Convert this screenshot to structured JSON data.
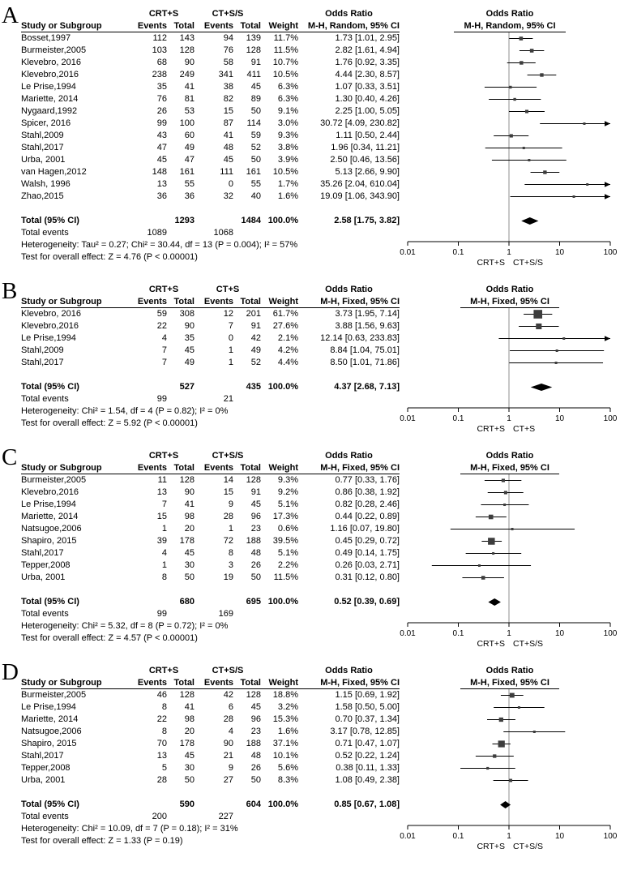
{
  "chart_data": [
    {
      "type": "forest",
      "panel_label": "A",
      "group1_header": "CRT+S",
      "group2_header": "CT+S/S",
      "odds_ratio_header": "Odds Ratio",
      "method_label": "M-H, Random, 95% CI",
      "study_col_header": "Study or Subgroup",
      "events_col_header": "Events",
      "total_col_header": "Total",
      "weight_col_header": "Weight",
      "x_ticks": [
        0.01,
        0.1,
        1,
        10,
        100
      ],
      "xlim": [
        0.01,
        100
      ],
      "favours_left_label": "CRT+S",
      "favours_right_label": "CT+S/S",
      "studies": [
        {
          "name": "Bosset,1997",
          "events1": "112",
          "total1": "143",
          "events2": "94",
          "total2": "139",
          "weight": "11.7%",
          "weight_value": 11.7,
          "or": 1.73,
          "ci_low": 1.01,
          "ci_high": 2.95,
          "ci_text": "1.73 [1.01, 2.95]"
        },
        {
          "name": "Burmeister,2005",
          "events1": "103",
          "total1": "128",
          "events2": "76",
          "total2": "128",
          "weight": "11.5%",
          "weight_value": 11.5,
          "or": 2.82,
          "ci_low": 1.61,
          "ci_high": 4.94,
          "ci_text": "2.82 [1.61, 4.94]"
        },
        {
          "name": "Klevebro, 2016",
          "events1": "68",
          "total1": "90",
          "events2": "58",
          "total2": "91",
          "weight": "10.7%",
          "weight_value": 10.7,
          "or": 1.76,
          "ci_low": 0.92,
          "ci_high": 3.35,
          "ci_text": "1.76 [0.92, 3.35]"
        },
        {
          "name": "Klevebro,2016",
          "events1": "238",
          "total1": "249",
          "events2": "341",
          "total2": "411",
          "weight": "10.5%",
          "weight_value": 10.5,
          "or": 4.44,
          "ci_low": 2.3,
          "ci_high": 8.57,
          "ci_text": "4.44 [2.30, 8.57]"
        },
        {
          "name": "Le Prise,1994",
          "events1": "35",
          "total1": "41",
          "events2": "38",
          "total2": "45",
          "weight": "6.3%",
          "weight_value": 6.3,
          "or": 1.07,
          "ci_low": 0.33,
          "ci_high": 3.51,
          "ci_text": "1.07 [0.33, 3.51]"
        },
        {
          "name": "Mariette, 2014",
          "events1": "76",
          "total1": "81",
          "events2": "82",
          "total2": "89",
          "weight": "6.3%",
          "weight_value": 6.3,
          "or": 1.3,
          "ci_low": 0.4,
          "ci_high": 4.26,
          "ci_text": "1.30 [0.40, 4.26]"
        },
        {
          "name": "Nygaard,1992",
          "events1": "26",
          "total1": "53",
          "events2": "15",
          "total2": "50",
          "weight": "9.1%",
          "weight_value": 9.1,
          "or": 2.25,
          "ci_low": 1.0,
          "ci_high": 5.05,
          "ci_text": "2.25 [1.00, 5.05]"
        },
        {
          "name": "Spicer, 2016",
          "events1": "99",
          "total1": "100",
          "events2": "87",
          "total2": "114",
          "weight": "3.0%",
          "weight_value": 3.0,
          "or": 30.72,
          "ci_low": 4.09,
          "ci_high": 230.82,
          "ci_text": "30.72 [4.09, 230.82]"
        },
        {
          "name": "Stahl,2009",
          "events1": "43",
          "total1": "60",
          "events2": "41",
          "total2": "59",
          "weight": "9.3%",
          "weight_value": 9.3,
          "or": 1.11,
          "ci_low": 0.5,
          "ci_high": 2.44,
          "ci_text": "1.11 [0.50, 2.44]"
        },
        {
          "name": "Stahl,2017",
          "events1": "47",
          "total1": "49",
          "events2": "48",
          "total2": "52",
          "weight": "3.8%",
          "weight_value": 3.8,
          "or": 1.96,
          "ci_low": 0.34,
          "ci_high": 11.21,
          "ci_text": "1.96 [0.34, 11.21]"
        },
        {
          "name": "Urba, 2001",
          "events1": "45",
          "total1": "47",
          "events2": "45",
          "total2": "50",
          "weight": "3.9%",
          "weight_value": 3.9,
          "or": 2.5,
          "ci_low": 0.46,
          "ci_high": 13.56,
          "ci_text": "2.50 [0.46, 13.56]"
        },
        {
          "name": "van Hagen,2012",
          "events1": "148",
          "total1": "161",
          "events2": "111",
          "total2": "161",
          "weight": "10.5%",
          "weight_value": 10.5,
          "or": 5.13,
          "ci_low": 2.66,
          "ci_high": 9.9,
          "ci_text": "5.13 [2.66, 9.90]"
        },
        {
          "name": "Walsh, 1996",
          "events1": "13",
          "total1": "55",
          "events2": "0",
          "total2": "55",
          "weight": "1.7%",
          "weight_value": 1.7,
          "or": 35.26,
          "ci_low": 2.04,
          "ci_high": 610.04,
          "ci_text": "35.26 [2.04, 610.04]"
        },
        {
          "name": "Zhao,2015",
          "events1": "36",
          "total1": "36",
          "events2": "32",
          "total2": "40",
          "weight": "1.6%",
          "weight_value": 1.6,
          "or": 19.09,
          "ci_low": 1.06,
          "ci_high": 343.9,
          "ci_text": "19.09 [1.06, 343.90]"
        }
      ],
      "total_row": {
        "label": "Total (95% CI)",
        "total1": "1293",
        "total2": "1484",
        "weight": "100.0%",
        "or": 2.58,
        "ci_low": 1.75,
        "ci_high": 3.82,
        "ci_text": "2.58 [1.75, 3.82]"
      },
      "total_events": {
        "label": "Total events",
        "events1": "1089",
        "events2": "1068"
      },
      "heterogeneity_text": "Heterogeneity: Tau² = 0.27; Chi² = 30.44, df = 13 (P = 0.004); I² = 57%",
      "overall_effect_text": "Test for overall effect: Z = 4.76 (P < 0.00001)"
    },
    {
      "type": "forest",
      "panel_label": "B",
      "group1_header": "CRT+S",
      "group2_header": "CT+S",
      "odds_ratio_header": "Odds Ratio",
      "method_label": "M-H, Fixed, 95% CI",
      "study_col_header": "Study or Subgroup",
      "events_col_header": "Events",
      "total_col_header": "Total",
      "weight_col_header": "Weight",
      "x_ticks": [
        0.01,
        0.1,
        1,
        10,
        100
      ],
      "xlim": [
        0.01,
        100
      ],
      "favours_left_label": "CRT+S",
      "favours_right_label": "CT+S",
      "studies": [
        {
          "name": "Klevebro, 2016",
          "events1": "59",
          "total1": "308",
          "events2": "12",
          "total2": "201",
          "weight": "61.7%",
          "weight_value": 61.7,
          "or": 3.73,
          "ci_low": 1.95,
          "ci_high": 7.14,
          "ci_text": "3.73 [1.95, 7.14]"
        },
        {
          "name": "Klevebro,2016",
          "events1": "22",
          "total1": "90",
          "events2": "7",
          "total2": "91",
          "weight": "27.6%",
          "weight_value": 27.6,
          "or": 3.88,
          "ci_low": 1.56,
          "ci_high": 9.63,
          "ci_text": "3.88 [1.56, 9.63]"
        },
        {
          "name": "Le Prise,1994",
          "events1": "4",
          "total1": "35",
          "events2": "0",
          "total2": "42",
          "weight": "2.1%",
          "weight_value": 2.1,
          "or": 12.14,
          "ci_low": 0.63,
          "ci_high": 233.83,
          "ci_text": "12.14 [0.63, 233.83]"
        },
        {
          "name": "Stahl,2009",
          "events1": "7",
          "total1": "45",
          "events2": "1",
          "total2": "49",
          "weight": "4.2%",
          "weight_value": 4.2,
          "or": 8.84,
          "ci_low": 1.04,
          "ci_high": 75.01,
          "ci_text": "8.84 [1.04, 75.01]"
        },
        {
          "name": "Stahl,2017",
          "events1": "7",
          "total1": "49",
          "events2": "1",
          "total2": "52",
          "weight": "4.4%",
          "weight_value": 4.4,
          "or": 8.5,
          "ci_low": 1.01,
          "ci_high": 71.86,
          "ci_text": "8.50 [1.01, 71.86]"
        }
      ],
      "total_row": {
        "label": "Total (95% CI)",
        "total1": "527",
        "total2": "435",
        "weight": "100.0%",
        "or": 4.37,
        "ci_low": 2.68,
        "ci_high": 7.13,
        "ci_text": "4.37 [2.68, 7.13]"
      },
      "total_events": {
        "label": "Total events",
        "events1": "99",
        "events2": "21"
      },
      "heterogeneity_text": "Heterogeneity: Chi² = 1.54, df = 4 (P = 0.82); I² = 0%",
      "overall_effect_text": "Test for overall effect: Z = 5.92 (P < 0.00001)"
    },
    {
      "type": "forest",
      "panel_label": "C",
      "group1_header": "CRT+S",
      "group2_header": "CT+S/S",
      "odds_ratio_header": "Odds Ratio",
      "method_label": "M-H, Fixed, 95% CI",
      "study_col_header": "Study or Subgroup",
      "events_col_header": "Events",
      "total_col_header": "Total",
      "weight_col_header": "Weight",
      "x_ticks": [
        0.01,
        0.1,
        1,
        10,
        100
      ],
      "xlim": [
        0.01,
        100
      ],
      "favours_left_label": "CRT+S",
      "favours_right_label": "CT+S/S",
      "studies": [
        {
          "name": "Burmeister,2005",
          "events1": "11",
          "total1": "128",
          "events2": "14",
          "total2": "128",
          "weight": "9.3%",
          "weight_value": 9.3,
          "or": 0.77,
          "ci_low": 0.33,
          "ci_high": 1.76,
          "ci_text": "0.77 [0.33, 1.76]"
        },
        {
          "name": "Klevebro,2016",
          "events1": "13",
          "total1": "90",
          "events2": "15",
          "total2": "91",
          "weight": "9.2%",
          "weight_value": 9.2,
          "or": 0.86,
          "ci_low": 0.38,
          "ci_high": 1.92,
          "ci_text": "0.86 [0.38, 1.92]"
        },
        {
          "name": "Le Prise,1994",
          "events1": "7",
          "total1": "41",
          "events2": "9",
          "total2": "45",
          "weight": "5.1%",
          "weight_value": 5.1,
          "or": 0.82,
          "ci_low": 0.28,
          "ci_high": 2.46,
          "ci_text": "0.82 [0.28, 2.46]"
        },
        {
          "name": "Mariette, 2014",
          "events1": "15",
          "total1": "98",
          "events2": "28",
          "total2": "96",
          "weight": "17.3%",
          "weight_value": 17.3,
          "or": 0.44,
          "ci_low": 0.22,
          "ci_high": 0.89,
          "ci_text": "0.44 [0.22, 0.89]"
        },
        {
          "name": "Natsugoe,2006",
          "events1": "1",
          "total1": "20",
          "events2": "1",
          "total2": "23",
          "weight": "0.6%",
          "weight_value": 0.6,
          "or": 1.16,
          "ci_low": 0.07,
          "ci_high": 19.8,
          "ci_text": "1.16 [0.07, 19.80]"
        },
        {
          "name": "Shapiro, 2015",
          "events1": "39",
          "total1": "178",
          "events2": "72",
          "total2": "188",
          "weight": "39.5%",
          "weight_value": 39.5,
          "or": 0.45,
          "ci_low": 0.29,
          "ci_high": 0.72,
          "ci_text": "0.45 [0.29, 0.72]"
        },
        {
          "name": "Stahl,2017",
          "events1": "4",
          "total1": "45",
          "events2": "8",
          "total2": "48",
          "weight": "5.1%",
          "weight_value": 5.1,
          "or": 0.49,
          "ci_low": 0.14,
          "ci_high": 1.75,
          "ci_text": "0.49 [0.14, 1.75]"
        },
        {
          "name": "Tepper,2008",
          "events1": "1",
          "total1": "30",
          "events2": "3",
          "total2": "26",
          "weight": "2.2%",
          "weight_value": 2.2,
          "or": 0.26,
          "ci_low": 0.03,
          "ci_high": 2.71,
          "ci_text": "0.26 [0.03, 2.71]"
        },
        {
          "name": "Urba, 2001",
          "events1": "8",
          "total1": "50",
          "events2": "19",
          "total2": "50",
          "weight": "11.5%",
          "weight_value": 11.5,
          "or": 0.31,
          "ci_low": 0.12,
          "ci_high": 0.8,
          "ci_text": "0.31 [0.12, 0.80]"
        }
      ],
      "total_row": {
        "label": "Total (95% CI)",
        "total1": "680",
        "total2": "695",
        "weight": "100.0%",
        "or": 0.52,
        "ci_low": 0.39,
        "ci_high": 0.69,
        "ci_text": "0.52 [0.39, 0.69]"
      },
      "total_events": {
        "label": "Total events",
        "events1": "99",
        "events2": "169"
      },
      "heterogeneity_text": "Heterogeneity: Chi² = 5.32, df = 8 (P = 0.72); I² = 0%",
      "overall_effect_text": "Test for overall effect: Z = 4.57 (P < 0.00001)"
    },
    {
      "type": "forest",
      "panel_label": "D",
      "group1_header": "CRT+S",
      "group2_header": "CT+S/S",
      "odds_ratio_header": "Odds Ratio",
      "method_label": "M-H, Fixed, 95% CI",
      "study_col_header": "Study or Subgroup",
      "events_col_header": "Events",
      "total_col_header": "Total",
      "weight_col_header": "Weight",
      "x_ticks": [
        0.01,
        0.1,
        1,
        10,
        100
      ],
      "xlim": [
        0.01,
        100
      ],
      "favours_left_label": "CRT+S",
      "favours_right_label": "CT+S/S",
      "studies": [
        {
          "name": "Burmeister,2005",
          "events1": "46",
          "total1": "128",
          "events2": "42",
          "total2": "128",
          "weight": "18.8%",
          "weight_value": 18.8,
          "or": 1.15,
          "ci_low": 0.69,
          "ci_high": 1.92,
          "ci_text": "1.15 [0.69, 1.92]"
        },
        {
          "name": "Le Prise,1994",
          "events1": "8",
          "total1": "41",
          "events2": "6",
          "total2": "45",
          "weight": "3.2%",
          "weight_value": 3.2,
          "or": 1.58,
          "ci_low": 0.5,
          "ci_high": 5.0,
          "ci_text": "1.58 [0.50, 5.00]"
        },
        {
          "name": "Mariette, 2014",
          "events1": "22",
          "total1": "98",
          "events2": "28",
          "total2": "96",
          "weight": "15.3%",
          "weight_value": 15.3,
          "or": 0.7,
          "ci_low": 0.37,
          "ci_high": 1.34,
          "ci_text": "0.70 [0.37, 1.34]"
        },
        {
          "name": "Natsugoe,2006",
          "events1": "8",
          "total1": "20",
          "events2": "4",
          "total2": "23",
          "weight": "1.6%",
          "weight_value": 1.6,
          "or": 3.17,
          "ci_low": 0.78,
          "ci_high": 12.85,
          "ci_text": "3.17 [0.78, 12.85]"
        },
        {
          "name": "Shapiro, 2015",
          "events1": "70",
          "total1": "178",
          "events2": "90",
          "total2": "188",
          "weight": "37.1%",
          "weight_value": 37.1,
          "or": 0.71,
          "ci_low": 0.47,
          "ci_high": 1.07,
          "ci_text": "0.71 [0.47, 1.07]"
        },
        {
          "name": "Stahl,2017",
          "events1": "13",
          "total1": "45",
          "events2": "21",
          "total2": "48",
          "weight": "10.1%",
          "weight_value": 10.1,
          "or": 0.52,
          "ci_low": 0.22,
          "ci_high": 1.24,
          "ci_text": "0.52 [0.22, 1.24]"
        },
        {
          "name": "Tepper,2008",
          "events1": "5",
          "total1": "30",
          "events2": "9",
          "total2": "26",
          "weight": "5.6%",
          "weight_value": 5.6,
          "or": 0.38,
          "ci_low": 0.11,
          "ci_high": 1.33,
          "ci_text": "0.38 [0.11, 1.33]"
        },
        {
          "name": "Urba, 2001",
          "events1": "28",
          "total1": "50",
          "events2": "27",
          "total2": "50",
          "weight": "8.3%",
          "weight_value": 8.3,
          "or": 1.08,
          "ci_low": 0.49,
          "ci_high": 2.38,
          "ci_text": "1.08 [0.49, 2.38]"
        }
      ],
      "total_row": {
        "label": "Total (95% CI)",
        "total1": "590",
        "total2": "604",
        "weight": "100.0%",
        "or": 0.85,
        "ci_low": 0.67,
        "ci_high": 1.08,
        "ci_text": "0.85 [0.67, 1.08]"
      },
      "total_events": {
        "label": "Total events",
        "events1": "200",
        "events2": "227"
      },
      "heterogeneity_text": "Heterogeneity: Chi² = 10.09, df = 7 (P = 0.18); I² = 31%",
      "overall_effect_text": "Test for overall effect: Z = 1.33 (P = 0.19)"
    }
  ]
}
